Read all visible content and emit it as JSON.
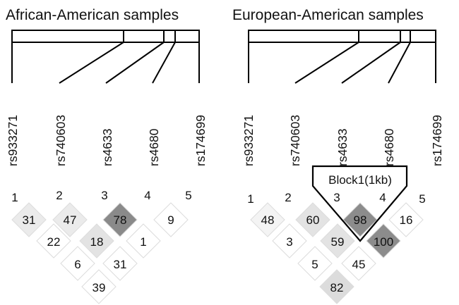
{
  "panels": [
    {
      "title": "African-American samples",
      "snps": [
        "rs933271",
        "rs740603",
        "rs4633",
        "rs4680",
        "rs174699"
      ],
      "indices": [
        "1",
        "2",
        "3",
        "4",
        "5"
      ],
      "ld": {
        "row1": [
          31,
          47,
          78,
          9
        ],
        "row2": [
          22,
          18,
          1
        ],
        "row3": [
          6,
          31
        ],
        "row4": [
          39
        ]
      },
      "block": null
    },
    {
      "title": "European-American samples",
      "snps": [
        "rs933271",
        "rs740603",
        "rs4633",
        "rs4680",
        "rs174699"
      ],
      "indices": [
        "1",
        "2",
        "3",
        "4",
        "5"
      ],
      "ld": {
        "row1": [
          48,
          60,
          98,
          16
        ],
        "row2": [
          3,
          59,
          100
        ],
        "row3": [
          5,
          45
        ],
        "row4": [
          82
        ]
      },
      "block": {
        "label": "Block1(1kb)"
      }
    }
  ]
}
